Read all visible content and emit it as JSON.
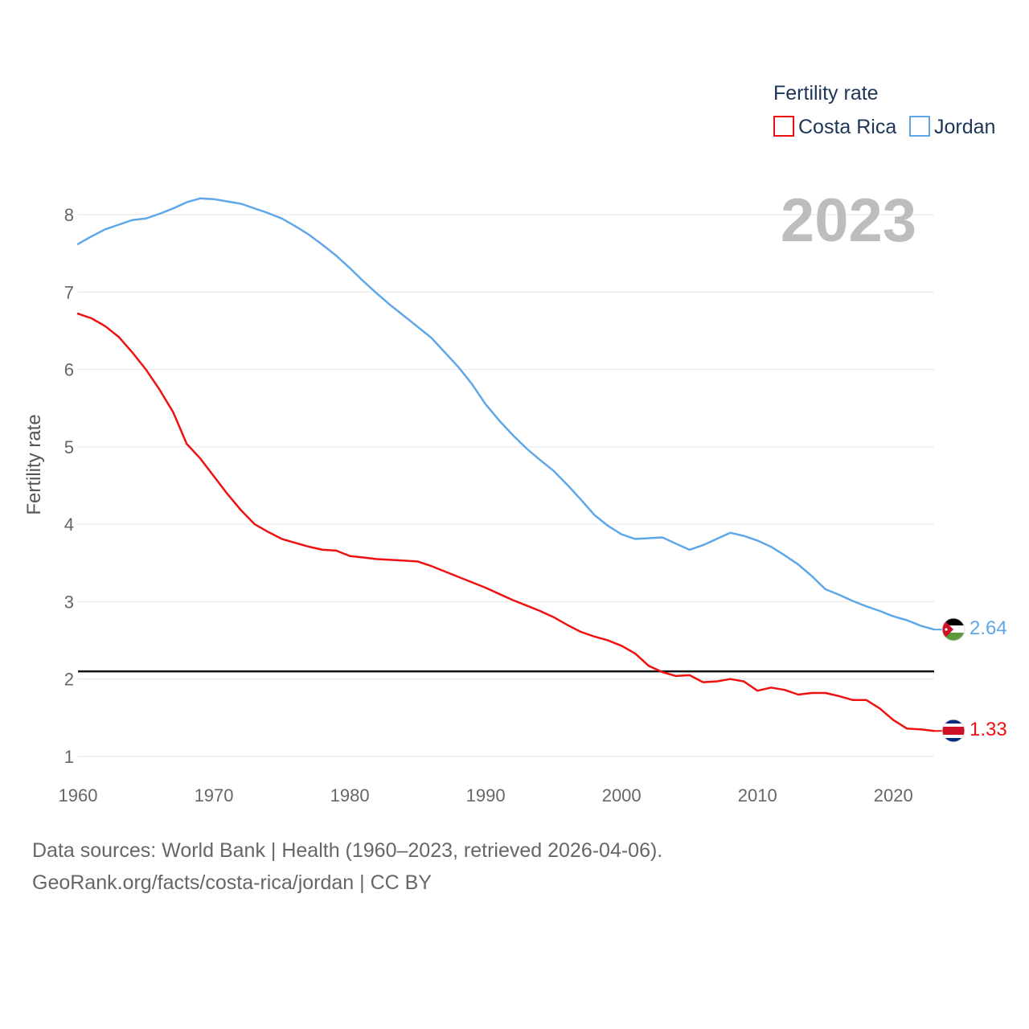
{
  "chart_data": {
    "type": "line",
    "ylabel": "Fertility rate",
    "xlabel": "",
    "xlim": [
      1960,
      2023
    ],
    "ylim": [
      1,
      8.6
    ],
    "x_ticks": [
      1960,
      1970,
      1980,
      1990,
      2000,
      2010,
      2020
    ],
    "y_ticks": [
      1,
      2,
      3,
      4,
      5,
      6,
      7,
      8
    ],
    "reference_line": 2.1,
    "year_label": "2023",
    "legend": {
      "title": "Fertility rate",
      "position": "top-right"
    },
    "x": [
      1960,
      1961,
      1962,
      1963,
      1964,
      1965,
      1966,
      1967,
      1968,
      1969,
      1970,
      1971,
      1972,
      1973,
      1974,
      1975,
      1976,
      1977,
      1978,
      1979,
      1980,
      1981,
      1982,
      1983,
      1984,
      1985,
      1986,
      1987,
      1988,
      1989,
      1990,
      1991,
      1992,
      1993,
      1994,
      1995,
      1996,
      1997,
      1998,
      1999,
      2000,
      2001,
      2002,
      2003,
      2004,
      2005,
      2006,
      2007,
      2008,
      2009,
      2010,
      2011,
      2012,
      2013,
      2014,
      2015,
      2016,
      2017,
      2018,
      2019,
      2020,
      2021,
      2022,
      2023
    ],
    "series": [
      {
        "name": "Costa Rica",
        "color": "#ee1111",
        "end_label": "1.33",
        "flag": "costa-rica-flag-icon",
        "values": [
          6.72,
          6.66,
          6.56,
          6.42,
          6.22,
          6.0,
          5.74,
          5.45,
          5.04,
          4.85,
          4.62,
          4.39,
          4.18,
          4.0,
          3.9,
          3.81,
          3.76,
          3.71,
          3.67,
          3.66,
          3.59,
          3.57,
          3.55,
          3.54,
          3.53,
          3.52,
          3.46,
          3.39,
          3.32,
          3.25,
          3.18,
          3.1,
          3.02,
          2.95,
          2.88,
          2.8,
          2.7,
          2.61,
          2.55,
          2.5,
          2.43,
          2.33,
          2.17,
          2.09,
          2.04,
          2.05,
          1.96,
          1.97,
          2.0,
          1.97,
          1.85,
          1.89,
          1.86,
          1.8,
          1.82,
          1.82,
          1.78,
          1.73,
          1.73,
          1.62,
          1.47,
          1.36,
          1.35,
          1.33
        ]
      },
      {
        "name": "Jordan",
        "color": "#5fa8e8",
        "end_label": "2.64",
        "flag": "jordan-flag-icon",
        "values": [
          7.62,
          7.72,
          7.81,
          7.87,
          7.93,
          7.95,
          8.01,
          8.08,
          8.16,
          8.21,
          8.2,
          8.17,
          8.14,
          8.08,
          8.02,
          7.95,
          7.85,
          7.74,
          7.61,
          7.47,
          7.31,
          7.14,
          6.98,
          6.83,
          6.69,
          6.55,
          6.41,
          6.22,
          6.03,
          5.81,
          5.55,
          5.34,
          5.15,
          4.98,
          4.83,
          4.69,
          4.51,
          4.32,
          4.12,
          3.98,
          3.87,
          3.81,
          3.82,
          3.83,
          3.75,
          3.67,
          3.73,
          3.81,
          3.89,
          3.85,
          3.79,
          3.71,
          3.6,
          3.48,
          3.33,
          3.16,
          3.09,
          3.01,
          2.94,
          2.88,
          2.81,
          2.76,
          2.69,
          2.64
        ]
      }
    ]
  },
  "footer": {
    "line1": "Data sources: World Bank | Health (1960–2023, retrieved 2026-04-06).",
    "line2": "GeoRank.org/facts/costa-rica/jordan | CC BY"
  }
}
